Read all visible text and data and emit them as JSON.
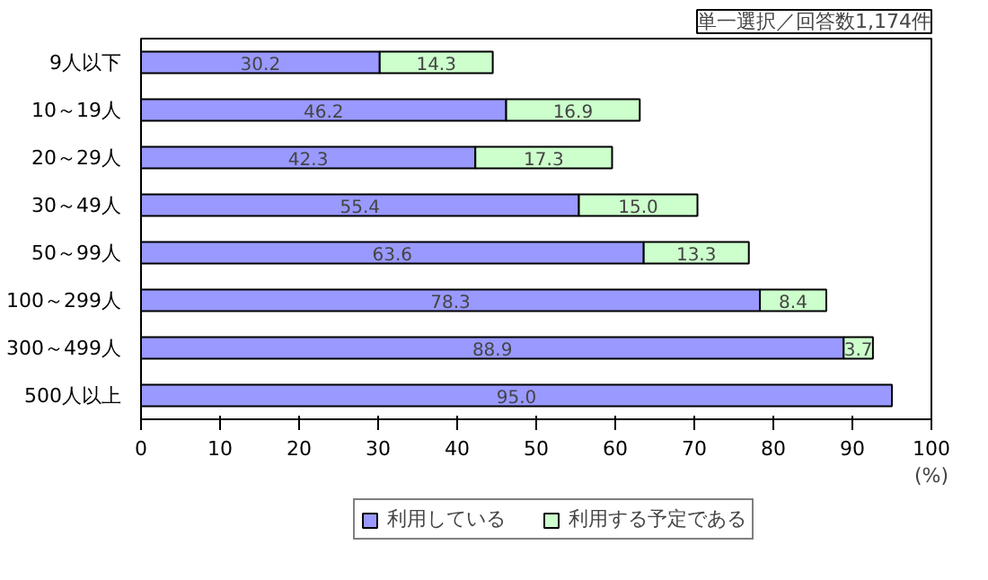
{
  "chart_data": {
    "type": "bar",
    "orientation": "horizontal",
    "stacked": true,
    "categories": [
      "9人以下",
      "10～19人",
      "20～29人",
      "30～49人",
      "50～99人",
      "100～299人",
      "300～499人",
      "500人以上"
    ],
    "series": [
      {
        "name": "利用している",
        "color": "#9999ff",
        "values": [
          30.2,
          46.2,
          42.3,
          55.4,
          63.6,
          78.3,
          88.9,
          95.0
        ],
        "value_labels": [
          "30.2",
          "46.2",
          "42.3",
          "55.4",
          "63.6",
          "78.3",
          "88.9",
          "95.0"
        ]
      },
      {
        "name": "利用する予定である",
        "color": "#ccffcc",
        "values": [
          14.3,
          16.9,
          17.3,
          15.0,
          13.3,
          8.4,
          3.7,
          null
        ],
        "value_labels": [
          "14.3",
          "16.9",
          "17.3",
          "15.0",
          "13.3",
          "8.4",
          "3.7",
          null
        ]
      }
    ],
    "xlim": [
      0,
      100
    ],
    "xticks": [
      0,
      10,
      20,
      30,
      40,
      50,
      60,
      70,
      80,
      90,
      100
    ],
    "xlabel": "(%)",
    "annotations": [
      "単一選択／回答数1,174件"
    ],
    "legend": "bottom",
    "grid": false
  }
}
